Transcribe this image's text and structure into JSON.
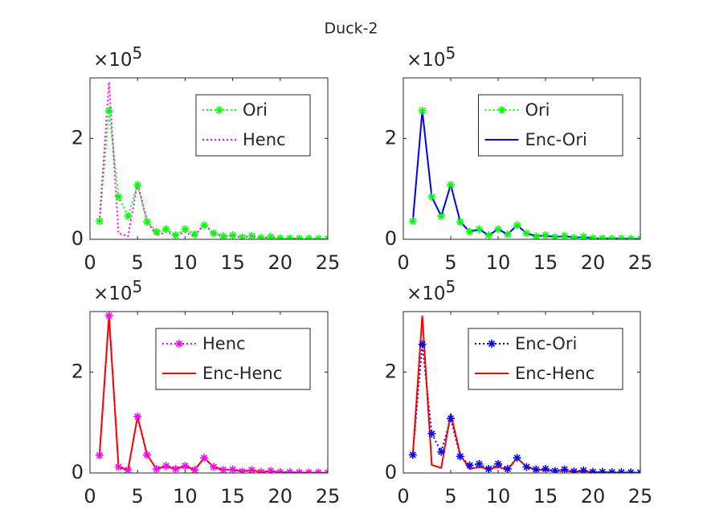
{
  "title": "Duck-2",
  "chart_data": [
    {
      "type": "line",
      "x": [
        1,
        2,
        3,
        4,
        5,
        6,
        7,
        8,
        9,
        10,
        11,
        12,
        13,
        14,
        15,
        16,
        17,
        18,
        19,
        20,
        21,
        22,
        23,
        24,
        25
      ],
      "xlim": [
        0,
        25
      ],
      "xticks": [
        0,
        5,
        10,
        15,
        20,
        25
      ],
      "ylim": [
        0,
        320000
      ],
      "yticks": [
        0,
        {
          "value": 200000,
          "label": "2"
        }
      ],
      "y_multiplier": {
        "base": "×10",
        "power": "5"
      },
      "legend": "northeast",
      "series": [
        {
          "name": "Ori",
          "color": "#00ff00",
          "dash": "dotted",
          "marker": "*",
          "values": [
            36000,
            255000,
            84000,
            46000,
            108000,
            35000,
            15000,
            20000,
            8000,
            20000,
            10000,
            28000,
            12000,
            6000,
            8000,
            4000,
            7000,
            3000,
            5000,
            2000,
            2000,
            1500,
            1500,
            1000,
            1000
          ]
        },
        {
          "name": "Henc",
          "color": "#ff00ff",
          "dash": "dotted",
          "marker": null,
          "values": [
            35000,
            312000,
            12000,
            6000,
            112000,
            36000,
            8000,
            14000,
            8000,
            14000,
            6000,
            30000,
            12000,
            6000,
            7000,
            3000,
            6000,
            2000,
            4000,
            1500,
            1500,
            1000,
            1000,
            800,
            800
          ]
        }
      ]
    },
    {
      "type": "line",
      "x": [
        1,
        2,
        3,
        4,
        5,
        6,
        7,
        8,
        9,
        10,
        11,
        12,
        13,
        14,
        15,
        16,
        17,
        18,
        19,
        20,
        21,
        22,
        23,
        24,
        25
      ],
      "xlim": [
        0,
        25
      ],
      "xticks": [
        0,
        5,
        10,
        15,
        20,
        25
      ],
      "ylim": [
        0,
        320000
      ],
      "yticks": [
        0,
        {
          "value": 200000,
          "label": "2"
        }
      ],
      "y_multiplier": {
        "base": "×10",
        "power": "5"
      },
      "legend": "northeast",
      "series": [
        {
          "name": "Ori",
          "color": "#00ff00",
          "dash": "dotted",
          "marker": "*",
          "values": [
            36000,
            255000,
            84000,
            46000,
            108000,
            35000,
            15000,
            20000,
            8000,
            20000,
            10000,
            28000,
            12000,
            6000,
            8000,
            4000,
            7000,
            3000,
            5000,
            2000,
            2000,
            1500,
            1500,
            1000,
            1000
          ]
        },
        {
          "name": "Enc-Ori",
          "color": "#0000ff",
          "dash": "solid",
          "marker": null,
          "values": [
            36000,
            255000,
            84000,
            46000,
            108000,
            35000,
            15000,
            20000,
            8000,
            20000,
            10000,
            28000,
            12000,
            6000,
            8000,
            4000,
            7000,
            3000,
            5000,
            2000,
            2000,
            1500,
            1500,
            1000,
            1000
          ]
        }
      ]
    },
    {
      "type": "line",
      "x": [
        1,
        2,
        3,
        4,
        5,
        6,
        7,
        8,
        9,
        10,
        11,
        12,
        13,
        14,
        15,
        16,
        17,
        18,
        19,
        20,
        21,
        22,
        23,
        24,
        25
      ],
      "xlim": [
        0,
        25
      ],
      "xticks": [
        0,
        5,
        10,
        15,
        20,
        25
      ],
      "ylim": [
        0,
        320000
      ],
      "yticks": [
        0,
        {
          "value": 200000,
          "label": "2"
        }
      ],
      "y_multiplier": {
        "base": "×10",
        "power": "5"
      },
      "legend": "northeast",
      "series": [
        {
          "name": "Henc",
          "color": "#ff00ff",
          "dash": "dotted",
          "marker": "*",
          "values": [
            35000,
            312000,
            12000,
            6000,
            112000,
            36000,
            8000,
            14000,
            8000,
            14000,
            6000,
            30000,
            12000,
            6000,
            7000,
            3000,
            6000,
            2000,
            4000,
            1500,
            1500,
            1000,
            1000,
            800,
            800
          ]
        },
        {
          "name": "Enc-Henc",
          "color": "#ff0000",
          "dash": "solid",
          "marker": null,
          "values": [
            35000,
            312000,
            12000,
            6000,
            112000,
            36000,
            8000,
            14000,
            8000,
            14000,
            6000,
            30000,
            12000,
            6000,
            7000,
            3000,
            6000,
            2000,
            4000,
            1500,
            1500,
            1000,
            1000,
            800,
            800
          ]
        }
      ]
    },
    {
      "type": "line",
      "x": [
        1,
        2,
        3,
        4,
        5,
        6,
        7,
        8,
        9,
        10,
        11,
        12,
        13,
        14,
        15,
        16,
        17,
        18,
        19,
        20,
        21,
        22,
        23,
        24,
        25
      ],
      "xlim": [
        0,
        25
      ],
      "xticks": [
        0,
        5,
        10,
        15,
        20,
        25
      ],
      "ylim": [
        0,
        320000
      ],
      "yticks": [
        0,
        {
          "value": 200000,
          "label": "2"
        }
      ],
      "y_multiplier": {
        "base": "×10",
        "power": "5"
      },
      "legend": "northeast",
      "series": [
        {
          "name": "Enc-Ori",
          "color": "#0000ff",
          "dash": "dotted",
          "marker": "*",
          "values": [
            36000,
            255000,
            78000,
            42000,
            108000,
            33000,
            15000,
            18000,
            8000,
            18000,
            8000,
            30000,
            12000,
            7000,
            8000,
            4000,
            7000,
            3000,
            5000,
            2000,
            2000,
            1500,
            1500,
            1000,
            1000
          ]
        },
        {
          "name": "Enc-Henc",
          "color": "#ff0000",
          "dash": "solid",
          "marker": null,
          "values": [
            35000,
            312000,
            16000,
            10000,
            118000,
            36000,
            8000,
            12000,
            8000,
            12000,
            6000,
            30000,
            12000,
            6000,
            6000,
            3000,
            5000,
            2000,
            4000,
            1500,
            1500,
            1000,
            1000,
            800,
            800
          ]
        }
      ]
    }
  ]
}
